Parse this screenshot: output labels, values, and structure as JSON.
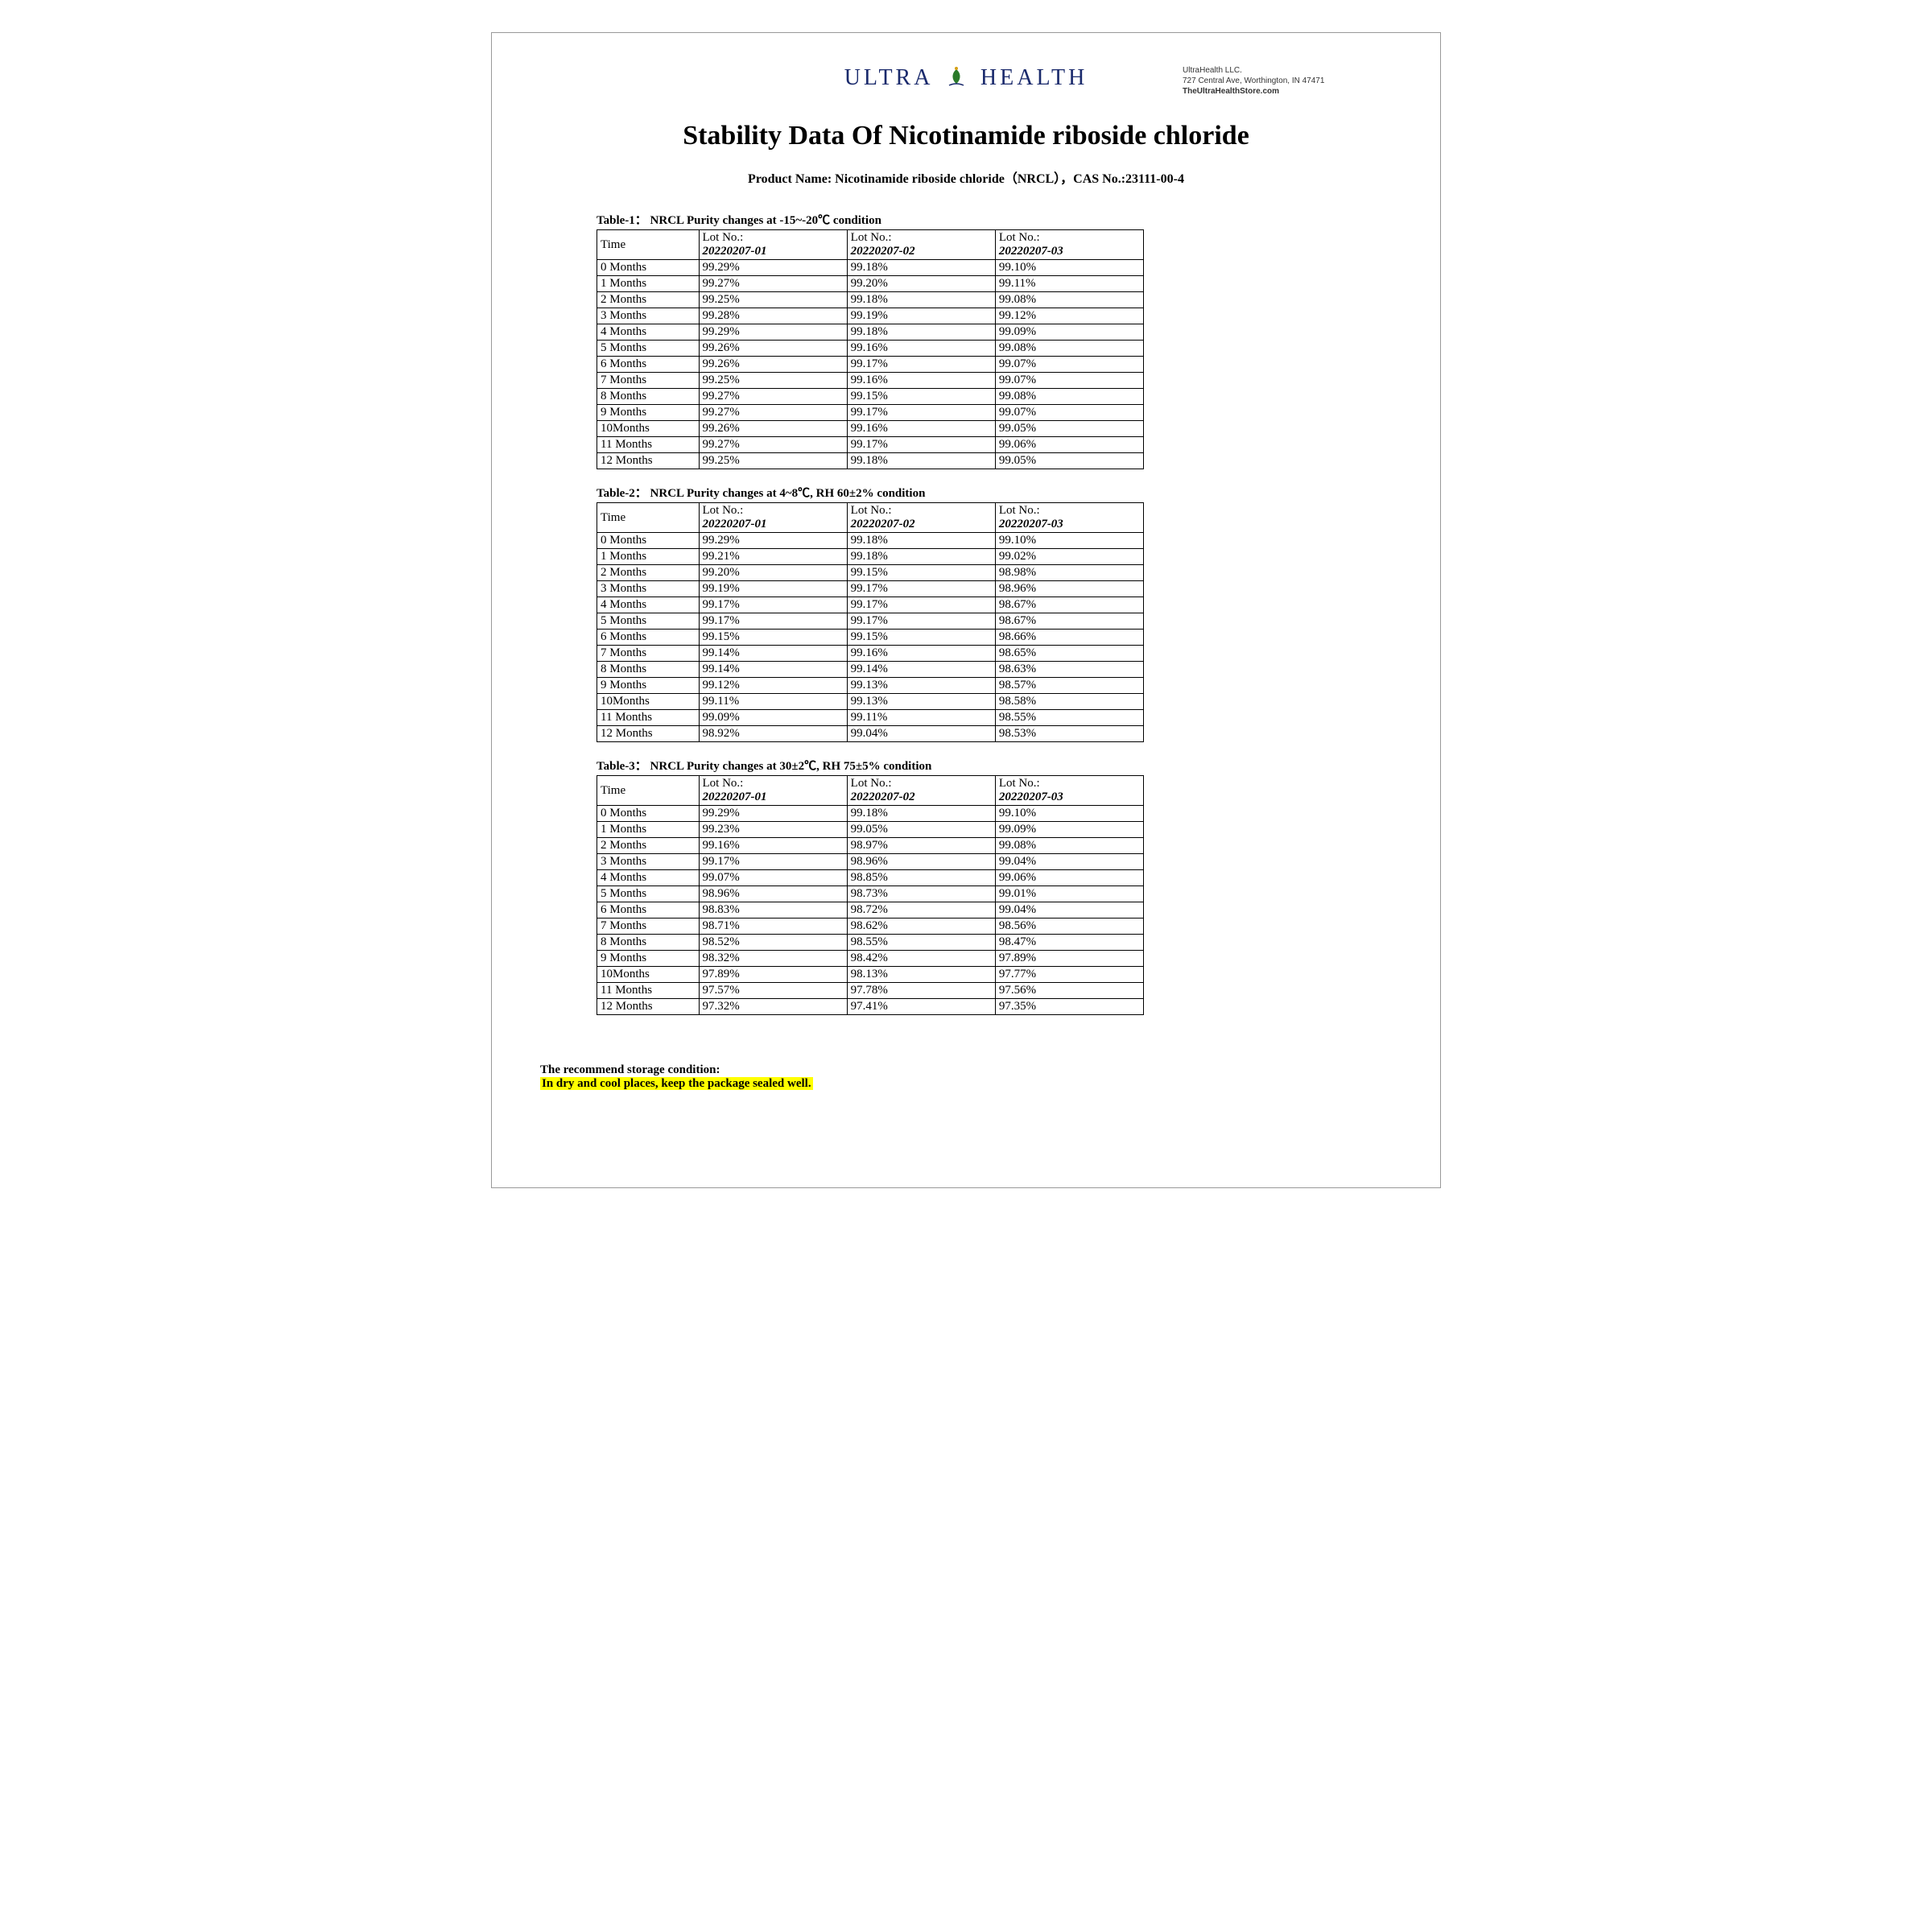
{
  "company": {
    "logo_left": "ULTRA",
    "logo_right": "HEALTH",
    "name": "UltraHealth LLC.",
    "address": "727 Central Ave, Worthington, IN 47471",
    "website": "TheUltraHealthStore.com"
  },
  "title": "Stability Data Of Nicotinamide riboside chloride",
  "product_line": "Product Name: Nicotinamide riboside chloride（NRCL），CAS No.:23111-00-4",
  "time_header": "Time",
  "lot_label": "Lot No.:",
  "lots": [
    "20220207-01",
    "20220207-02",
    "20220207-03"
  ],
  "tables": [
    {
      "caption": "Table-1：  NRCL Purity changes at -15~-20℃ condition",
      "rows": [
        {
          "t": "0 Months",
          "v": [
            "99.29%",
            "99.18%",
            "99.10%"
          ]
        },
        {
          "t": "1 Months",
          "v": [
            "99.27%",
            "99.20%",
            "99.11%"
          ]
        },
        {
          "t": "2 Months",
          "v": [
            "99.25%",
            "99.18%",
            "99.08%"
          ]
        },
        {
          "t": "3 Months",
          "v": [
            "99.28%",
            "99.19%",
            "99.12%"
          ]
        },
        {
          "t": "4 Months",
          "v": [
            "99.29%",
            "99.18%",
            "99.09%"
          ]
        },
        {
          "t": "5 Months",
          "v": [
            "99.26%",
            "99.16%",
            "99.08%"
          ]
        },
        {
          "t": "6 Months",
          "v": [
            "99.26%",
            "99.17%",
            "99.07%"
          ]
        },
        {
          "t": "7 Months",
          "v": [
            "99.25%",
            "99.16%",
            "99.07%"
          ]
        },
        {
          "t": "8 Months",
          "v": [
            "99.27%",
            "99.15%",
            "99.08%"
          ]
        },
        {
          "t": "9 Months",
          "v": [
            "99.27%",
            "99.17%",
            "99.07%"
          ]
        },
        {
          "t": "10Months",
          "v": [
            "99.26%",
            "99.16%",
            "99.05%"
          ]
        },
        {
          "t": "11 Months",
          "v": [
            "99.27%",
            "99.17%",
            "99.06%"
          ]
        },
        {
          "t": "12 Months",
          "v": [
            "99.25%",
            "99.18%",
            "99.05%"
          ]
        }
      ]
    },
    {
      "caption": "Table-2：  NRCL Purity changes at 4~8℃, RH 60±2% condition",
      "rows": [
        {
          "t": "0 Months",
          "v": [
            "99.29%",
            "99.18%",
            "99.10%"
          ]
        },
        {
          "t": "1 Months",
          "v": [
            "99.21%",
            "99.18%",
            "99.02%"
          ]
        },
        {
          "t": "2 Months",
          "v": [
            "99.20%",
            "99.15%",
            "98.98%"
          ]
        },
        {
          "t": "3 Months",
          "v": [
            "99.19%",
            "99.17%",
            "98.96%"
          ]
        },
        {
          "t": "4 Months",
          "v": [
            "99.17%",
            "99.17%",
            "98.67%"
          ]
        },
        {
          "t": "5 Months",
          "v": [
            "99.17%",
            "99.17%",
            "98.67%"
          ]
        },
        {
          "t": "6 Months",
          "v": [
            "99.15%",
            "99.15%",
            "98.66%"
          ]
        },
        {
          "t": "7 Months",
          "v": [
            "99.14%",
            "99.16%",
            "98.65%"
          ]
        },
        {
          "t": "8 Months",
          "v": [
            "99.14%",
            "99.14%",
            "98.63%"
          ]
        },
        {
          "t": "9 Months",
          "v": [
            "99.12%",
            "99.13%",
            "98.57%"
          ]
        },
        {
          "t": "10Months",
          "v": [
            "99.11%",
            "99.13%",
            "98.58%"
          ]
        },
        {
          "t": "11 Months",
          "v": [
            "99.09%",
            "99.11%",
            "98.55%"
          ]
        },
        {
          "t": "12 Months",
          "v": [
            "98.92%",
            "99.04%",
            "98.53%"
          ]
        }
      ]
    },
    {
      "caption": "Table-3：  NRCL Purity changes at 30±2℃, RH 75±5% condition",
      "rows": [
        {
          "t": "0 Months",
          "v": [
            "99.29%",
            "99.18%",
            "99.10%"
          ]
        },
        {
          "t": "1 Months",
          "v": [
            "99.23%",
            "99.05%",
            "99.09%"
          ]
        },
        {
          "t": "2 Months",
          "v": [
            "99.16%",
            "98.97%",
            "99.08%"
          ]
        },
        {
          "t": "3 Months",
          "v": [
            "99.17%",
            "98.96%",
            "99.04%"
          ]
        },
        {
          "t": "4 Months",
          "v": [
            "99.07%",
            "98.85%",
            "99.06%"
          ]
        },
        {
          "t": "5 Months",
          "v": [
            "98.96%",
            "98.73%",
            "99.01%"
          ]
        },
        {
          "t": "6 Months",
          "v": [
            "98.83%",
            "98.72%",
            "99.04%"
          ]
        },
        {
          "t": "7 Months",
          "v": [
            "98.71%",
            "98.62%",
            "98.56%"
          ]
        },
        {
          "t": "8 Months",
          "v": [
            "98.52%",
            "98.55%",
            "98.47%"
          ]
        },
        {
          "t": "9 Months",
          "v": [
            "98.32%",
            "98.42%",
            "97.89%"
          ]
        },
        {
          "t": "10Months",
          "v": [
            "97.89%",
            "98.13%",
            "97.77%"
          ]
        },
        {
          "t": "11 Months",
          "v": [
            "97.57%",
            "97.78%",
            "97.56%"
          ]
        },
        {
          "t": "12 Months",
          "v": [
            "97.32%",
            "97.41%",
            "97.35%"
          ]
        }
      ]
    }
  ],
  "storage": {
    "label": "The recommend storage condition:",
    "highlight": "In dry and cool places, keep the package sealed well."
  }
}
